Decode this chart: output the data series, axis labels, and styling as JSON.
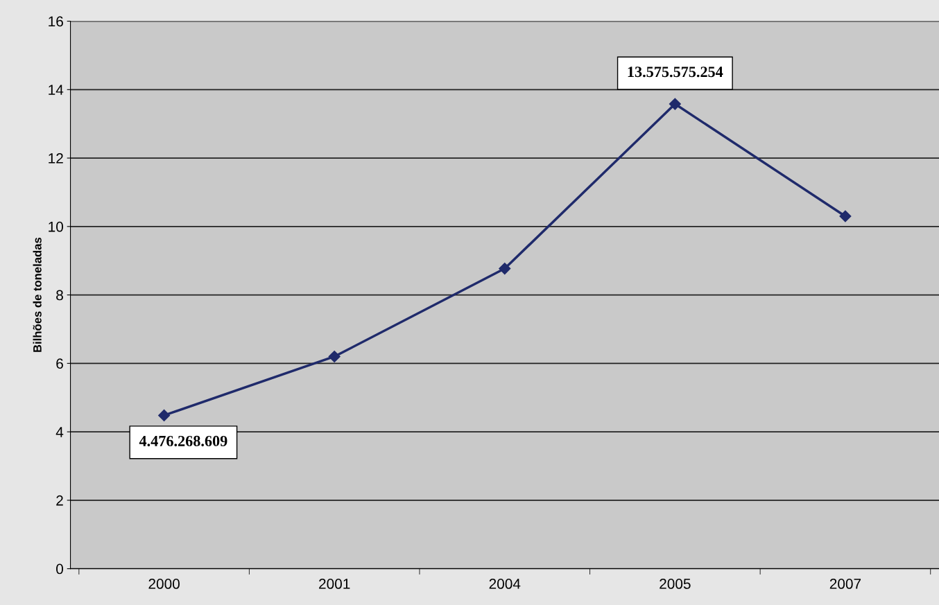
{
  "chart_data": {
    "type": "line",
    "ylabel": "Bilhões de toneladas",
    "categories": [
      "2000",
      "2001",
      "2004",
      "2005",
      "2007"
    ],
    "series": [
      {
        "color": "#1f2a6b",
        "values": [
          4.48,
          6.2,
          8.77,
          13.58,
          10.3
        ]
      }
    ],
    "ylim": [
      0,
      16
    ],
    "yticks": [
      0,
      2,
      4,
      6,
      8,
      10,
      12,
      14,
      16
    ],
    "grid": "y",
    "marker": "diamond",
    "line_style": "solid",
    "annotations": [
      {
        "text": "4.476.268.609",
        "x": "2000",
        "y": 4.48
      },
      {
        "text": "13.575.575.254",
        "x": "2005",
        "y": 13.58
      }
    ]
  }
}
